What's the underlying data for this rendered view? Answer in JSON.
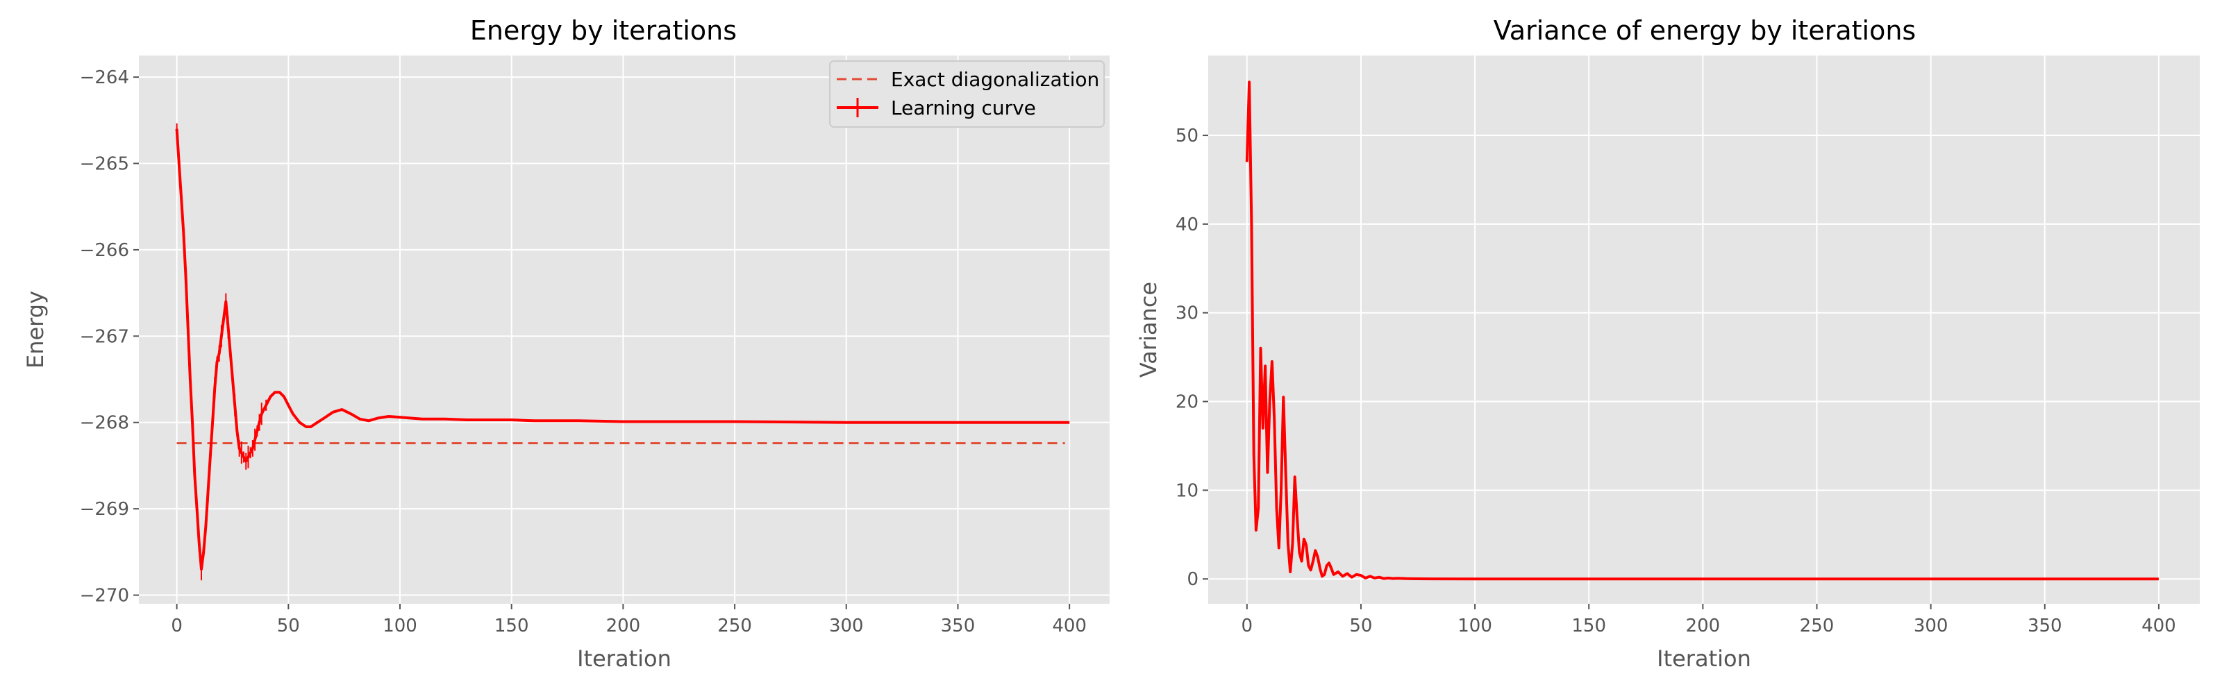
{
  "chart_data": [
    {
      "type": "line",
      "title": "Energy by iterations",
      "xlabel": "Iteration",
      "ylabel": "Energy",
      "xlim": [
        -17,
        418
      ],
      "ylim": [
        -270.1,
        -263.75
      ],
      "xticks": [
        0,
        50,
        100,
        150,
        200,
        250,
        300,
        350,
        400
      ],
      "yticks": [
        -270,
        -269,
        -268,
        -267,
        -266,
        -265,
        -264
      ],
      "xtick_labels": [
        "0",
        "50",
        "100",
        "150",
        "200",
        "250",
        "300",
        "350",
        "400"
      ],
      "ytick_labels": [
        "−270",
        "−269",
        "−268",
        "−267",
        "−266",
        "−265",
        "−264"
      ],
      "grid": true,
      "legend_position": "top-right",
      "series": [
        {
          "name": "Exact diagonalization",
          "style": "dashed",
          "color": "#E24A33",
          "x": [
            0,
            398
          ],
          "y": [
            -268.24,
            -268.24
          ]
        },
        {
          "name": "Learning curve",
          "style": "solid-errorbar",
          "color": "#FF0000",
          "x": [
            0,
            1,
            2,
            3,
            4,
            5,
            6,
            7,
            8,
            9,
            10,
            11,
            12,
            13,
            14,
            15,
            16,
            17,
            18,
            19,
            20,
            21,
            22,
            23,
            24,
            25,
            26,
            27,
            28,
            29,
            30,
            31,
            32,
            33,
            34,
            35,
            36,
            37,
            38,
            40,
            42,
            44,
            46,
            48,
            50,
            52,
            55,
            58,
            60,
            63,
            66,
            70,
            74,
            78,
            82,
            86,
            90,
            95,
            100,
            110,
            120,
            130,
            140,
            150,
            160,
            180,
            200,
            250,
            300,
            350,
            400
          ],
          "y": [
            -264.6,
            -265.0,
            -265.4,
            -265.8,
            -266.3,
            -266.9,
            -267.5,
            -268.0,
            -268.6,
            -269.0,
            -269.4,
            -269.7,
            -269.5,
            -269.2,
            -268.8,
            -268.4,
            -268.0,
            -267.6,
            -267.3,
            -267.2,
            -267.0,
            -266.8,
            -266.6,
            -266.9,
            -267.2,
            -267.5,
            -267.8,
            -268.1,
            -268.3,
            -268.35,
            -268.4,
            -268.45,
            -268.4,
            -268.35,
            -268.3,
            -268.2,
            -268.1,
            -268.0,
            -267.9,
            -267.8,
            -267.7,
            -267.65,
            -267.65,
            -267.7,
            -267.8,
            -267.9,
            -268.0,
            -268.05,
            -268.05,
            -268.0,
            -267.95,
            -267.88,
            -267.85,
            -267.9,
            -267.96,
            -267.98,
            -267.95,
            -267.93,
            -267.94,
            -267.96,
            -267.96,
            -267.97,
            -267.97,
            -267.97,
            -267.98,
            -267.98,
            -267.99,
            -267.99,
            -268.0,
            -268.0,
            -268.0
          ]
        }
      ]
    },
    {
      "type": "line",
      "title": "Variance of energy by iterations",
      "xlabel": "Iteration",
      "ylabel": "Variance",
      "xlim": [
        -17,
        418
      ],
      "ylim": [
        -2.8,
        59
      ],
      "xticks": [
        0,
        50,
        100,
        150,
        200,
        250,
        300,
        350,
        400
      ],
      "yticks": [
        0,
        10,
        20,
        30,
        40,
        50
      ],
      "xtick_labels": [
        "0",
        "50",
        "100",
        "150",
        "200",
        "250",
        "300",
        "350",
        "400"
      ],
      "ytick_labels": [
        "0",
        "10",
        "20",
        "30",
        "40",
        "50"
      ],
      "grid": true,
      "series": [
        {
          "name": "Variance",
          "style": "solid",
          "color": "#FF0000",
          "x": [
            0,
            1,
            2,
            3,
            4,
            5,
            6,
            7,
            8,
            9,
            10,
            11,
            12,
            13,
            14,
            15,
            16,
            17,
            18,
            19,
            20,
            21,
            22,
            23,
            24,
            25,
            26,
            27,
            28,
            29,
            30,
            31,
            32,
            33,
            34,
            35,
            36,
            37,
            38,
            40,
            42,
            44,
            46,
            48,
            50,
            52,
            54,
            56,
            58,
            60,
            62,
            64,
            66,
            70,
            75,
            80,
            100,
            150,
            200,
            250,
            300,
            350,
            400
          ],
          "y": [
            47,
            56,
            40,
            14,
            5.5,
            8,
            26,
            17,
            24,
            12,
            20,
            24.5,
            18,
            8,
            3.5,
            10,
            20.5,
            12,
            4,
            0.8,
            4,
            11.5,
            7,
            3,
            2,
            4.5,
            3.8,
            1.5,
            1,
            2,
            3.2,
            2.5,
            1.2,
            0.3,
            0.5,
            1.5,
            1.8,
            1.2,
            0.5,
            0.8,
            0.3,
            0.6,
            0.2,
            0.5,
            0.4,
            0.1,
            0.3,
            0.1,
            0.2,
            0.05,
            0.1,
            0.05,
            0.08,
            0.03,
            0.02,
            0.01,
            0,
            0,
            0,
            0,
            0,
            0,
            0
          ]
        }
      ]
    }
  ]
}
